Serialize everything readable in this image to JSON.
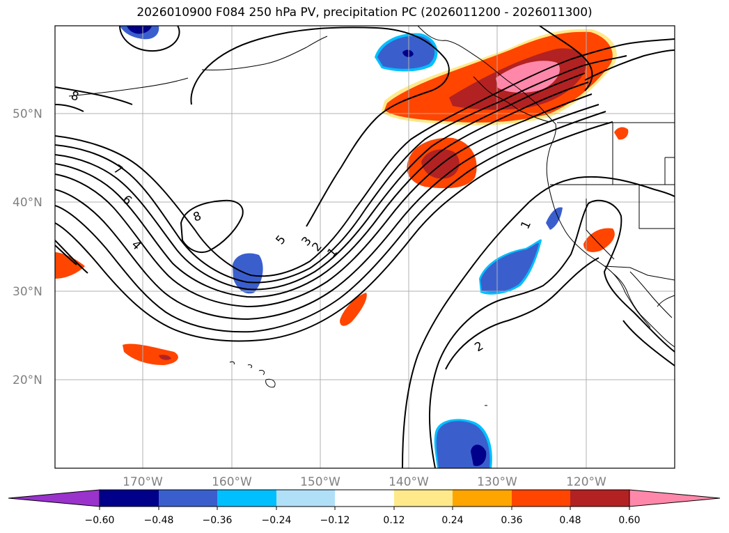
{
  "title": "2026010900 F084 250 hPa PV, precipitation PC (2026011200 - 2026011300)",
  "lat_labels": [
    "50°N",
    "40°N",
    "30°N",
    "20°N"
  ],
  "lon_labels": [
    "170°W",
    "160°W",
    "150°W",
    "140°W",
    "130°W",
    "120°W"
  ],
  "contour_labels": [
    "8",
    "7",
    "6",
    "4",
    "8",
    "5",
    "3",
    "2",
    "1",
    "1",
    "2"
  ],
  "colorbar": {
    "ticks": [
      "−0.60",
      "−0.48",
      "−0.36",
      "−0.24",
      "−0.12",
      "0.12",
      "0.24",
      "0.36",
      "0.48",
      "0.60"
    ],
    "colors": [
      "#9933cc",
      "#00008b",
      "#3a5fcd",
      "#00bfff",
      "#b0e0f8",
      "#ffffff",
      "#ffe98a",
      "#ffa500",
      "#ff4500",
      "#b22222",
      "#ff88aa"
    ]
  },
  "colors": {
    "grid": "#b0b0b0",
    "coast": "#000000",
    "contour": "#000000"
  }
}
